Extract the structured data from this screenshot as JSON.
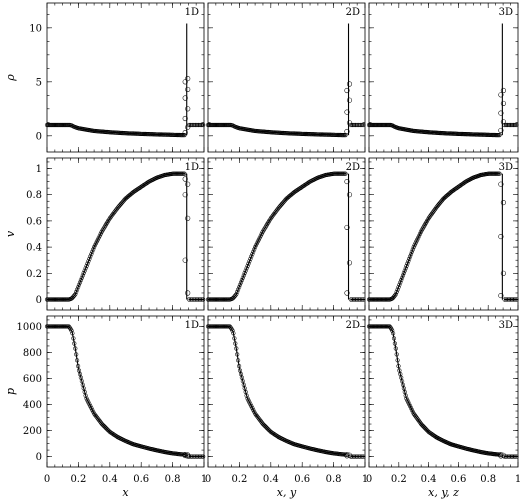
{
  "chart_data": {
    "type": "scatter",
    "layout": "3x3 grid, shared axes per row and column",
    "grid": false,
    "legend": "none",
    "marker": "open circles",
    "panel_tags": [
      "1D",
      "2D",
      "3D"
    ],
    "x_labels": [
      "x",
      "x, y",
      "x, y, z"
    ],
    "x_ticks": [
      "0",
      "0.2",
      "0.4",
      "0.6",
      "0.8",
      "1"
    ],
    "xlim": [
      0,
      1
    ],
    "rows": [
      {
        "ylabel": "ρ",
        "ylim": [
          -1.5,
          12.3
        ],
        "y_ticks": [
          "0",
          "5",
          "10"
        ],
        "profile": {
          "x": [
            0.0,
            0.12,
            0.145,
            0.16,
            0.17,
            0.2,
            0.3,
            0.4,
            0.5,
            0.6,
            0.7,
            0.8,
            0.85,
            0.88
          ],
          "y_1D": [
            1.0,
            1.0,
            1.0,
            0.95,
            0.85,
            0.7,
            0.45,
            0.33,
            0.24,
            0.18,
            0.13,
            0.09,
            0.07,
            0.06
          ],
          "y_2D": [
            1.0,
            1.0,
            1.0,
            0.95,
            0.85,
            0.7,
            0.45,
            0.33,
            0.24,
            0.18,
            0.13,
            0.09,
            0.07,
            0.06
          ],
          "y_3D": [
            1.0,
            1.0,
            1.0,
            0.95,
            0.85,
            0.7,
            0.45,
            0.33,
            0.24,
            0.18,
            0.13,
            0.09,
            0.07,
            0.06
          ]
        },
        "shock": {
          "x_1D": 0.89,
          "x_2D": 0.895,
          "x_3D": 0.895,
          "spike_top": 10.4,
          "circles_1D": [
            0.3,
            0.8,
            1.6,
            2.5,
            3.5,
            4.3,
            5.0,
            5.3
          ],
          "circles_2D": [
            0.4,
            1.2,
            2.2,
            3.3,
            4.2,
            4.8
          ],
          "circles_3D": [
            0.5,
            1.3,
            2.1,
            3.0,
            3.8,
            4.2
          ],
          "post_value": 1.0
        }
      },
      {
        "ylabel": "v",
        "ylim": [
          -0.08,
          1.08
        ],
        "y_ticks": [
          "0",
          "0.2",
          "0.4",
          "0.6",
          "0.8",
          "1"
        ],
        "profile": {
          "x": [
            0.0,
            0.14,
            0.16,
            0.18,
            0.2,
            0.25,
            0.3,
            0.35,
            0.4,
            0.45,
            0.5,
            0.55,
            0.6,
            0.65,
            0.7,
            0.75,
            0.8,
            0.85,
            0.88
          ],
          "y_1D": [
            0.0,
            0.0,
            0.01,
            0.04,
            0.1,
            0.25,
            0.4,
            0.52,
            0.62,
            0.7,
            0.77,
            0.82,
            0.86,
            0.9,
            0.93,
            0.95,
            0.96,
            0.96,
            0.96
          ],
          "y_2D": [
            0.0,
            0.0,
            0.01,
            0.04,
            0.1,
            0.25,
            0.4,
            0.52,
            0.62,
            0.7,
            0.77,
            0.82,
            0.86,
            0.9,
            0.93,
            0.95,
            0.96,
            0.96,
            0.96
          ],
          "y_3D": [
            0.0,
            0.0,
            0.01,
            0.04,
            0.1,
            0.25,
            0.4,
            0.52,
            0.62,
            0.7,
            0.77,
            0.82,
            0.86,
            0.9,
            0.93,
            0.95,
            0.96,
            0.96,
            0.96
          ]
        },
        "shock": {
          "x_1D": 0.89,
          "x_2D": 0.895,
          "x_3D": 0.895,
          "circles_1D": [
            0.92,
            0.88,
            0.8,
            0.62,
            0.3,
            0.05
          ],
          "circles_2D": [
            0.9,
            0.8,
            0.55,
            0.28,
            0.05
          ],
          "circles_3D": [
            0.88,
            0.74,
            0.48,
            0.2,
            0.03
          ],
          "post_value": 0.0
        }
      },
      {
        "ylabel": "p",
        "ylim": [
          -80,
          1080
        ],
        "y_ticks": [
          "0",
          "200",
          "400",
          "600",
          "800",
          "1000"
        ],
        "profile": {
          "x": [
            0.0,
            0.14,
            0.16,
            0.18,
            0.2,
            0.25,
            0.3,
            0.35,
            0.4,
            0.45,
            0.5,
            0.55,
            0.6,
            0.65,
            0.7,
            0.75,
            0.8,
            0.85,
            0.88
          ],
          "y_1D": [
            1000,
            1000,
            960,
            830,
            680,
            450,
            330,
            250,
            190,
            150,
            120,
            95,
            78,
            62,
            48,
            35,
            25,
            18,
            15
          ],
          "y_2D": [
            1000,
            1000,
            960,
            830,
            680,
            450,
            330,
            250,
            190,
            150,
            120,
            95,
            78,
            62,
            48,
            35,
            25,
            18,
            15
          ],
          "y_3D": [
            1000,
            1000,
            960,
            830,
            680,
            450,
            330,
            250,
            190,
            150,
            120,
            95,
            78,
            62,
            48,
            35,
            25,
            18,
            15
          ]
        },
        "shock": {
          "x_1D": 0.89,
          "x_2D": 0.895,
          "x_3D": 0.895,
          "circles_1D": [
            15,
            12,
            8,
            4
          ],
          "circles_2D": [
            15,
            11,
            6
          ],
          "circles_3D": [
            15,
            10,
            5
          ],
          "post_value": 0.0
        }
      }
    ]
  }
}
